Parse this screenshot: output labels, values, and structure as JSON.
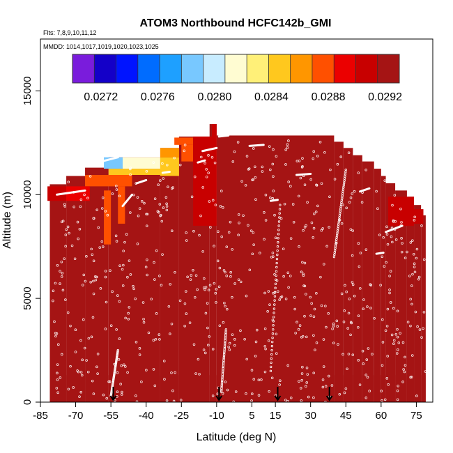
{
  "chart_data": {
    "type": "heatmap",
    "title": "ATOM3 Northbound HCFC142b_GMI",
    "subtitle_flights": "Flts: 7,8,9,10,11,12",
    "subtitle_dates": "MMDD: 1014,1017,1019,1020,1023,1025",
    "xlabel": "Latitude (deg N)",
    "ylabel": "Altitude (m)",
    "xlim": [
      -85,
      82
    ],
    "ylim": [
      0,
      17500
    ],
    "x_ticks": [
      -85,
      -70,
      -55,
      -40,
      -25,
      -10,
      5,
      15,
      30,
      45,
      60,
      75
    ],
    "y_ticks": [
      0,
      5000,
      10000,
      15000
    ],
    "grid": false,
    "legend": {
      "placement": "top",
      "ticks": [
        "0.0272",
        "0.0276",
        "0.0280",
        "0.0284",
        "0.0288",
        "0.0292"
      ],
      "range": [
        0.027,
        0.0293
      ],
      "colors": [
        "#7a1cdc",
        "#1400c8",
        "#0014ff",
        "#006cff",
        "#1ea0ff",
        "#78c8ff",
        "#c8ecff",
        "#fffcd2",
        "#fff078",
        "#ffc81e",
        "#ff9600",
        "#ff5000",
        "#eb0000",
        "#c80000",
        "#a51414"
      ]
    },
    "background_value": 0.02915,
    "anomalies": [
      {
        "lat": [
          -58,
          -55
        ],
        "alt": [
          7600,
          10200
        ],
        "value": 0.0287
      },
      {
        "lat": [
          -52,
          -49
        ],
        "alt": [
          8600,
          10400
        ],
        "value": 0.0288
      },
      {
        "lat": [
          -66,
          -46
        ],
        "alt": [
          10400,
          10950
        ],
        "value": 0.0287
      },
      {
        "lat": [
          -56,
          -32
        ],
        "alt": [
          10950,
          11250
        ],
        "value": 0.0285
      },
      {
        "lat": [
          -58,
          -50
        ],
        "alt": [
          11250,
          11800
        ],
        "value": 0.0278
      },
      {
        "lat": [
          -50,
          -34
        ],
        "alt": [
          11250,
          11800
        ],
        "value": 0.0281
      },
      {
        "lat": [
          -34,
          -26
        ],
        "alt": [
          10900,
          11800
        ],
        "value": 0.0285
      },
      {
        "lat": [
          -34,
          -26
        ],
        "alt": [
          11800,
          12250
        ],
        "value": 0.0286
      },
      {
        "lat": [
          -25,
          -20
        ],
        "alt": [
          11600,
          12400
        ],
        "value": 0.0287
      },
      {
        "lat": [
          -28,
          -20
        ],
        "alt": [
          12400,
          12750
        ],
        "value": 0.0288
      },
      {
        "lat": [
          -82,
          -74
        ],
        "alt": [
          9700,
          10400
        ],
        "value": 0.029
      },
      {
        "lat": [
          -74,
          -64
        ],
        "alt": [
          9700,
          10400
        ],
        "value": 0.0289
      },
      {
        "lat": [
          -20,
          -10
        ],
        "alt": [
          8500,
          12800
        ],
        "value": 0.0291
      },
      {
        "lat": [
          63,
          74
        ],
        "alt": [
          8500,
          9900
        ],
        "value": 0.0291
      },
      {
        "lat": [
          73,
          78
        ],
        "alt": [
          8600,
          9300
        ],
        "value": 0.029
      },
      {
        "lat": [
          -12,
          -10
        ],
        "alt": [
          12800,
          13400
        ],
        "value": 0.029
      }
    ],
    "tropopause_steps": [
      {
        "lat": [
          -81,
          -74
        ],
        "top": 10500
      },
      {
        "lat": [
          -74,
          -66
        ],
        "top": 10900
      },
      {
        "lat": [
          -66,
          -56
        ],
        "top": 11300
      },
      {
        "lat": [
          -56,
          -34
        ],
        "top": 11800
      },
      {
        "lat": [
          -34,
          -26
        ],
        "top": 12250
      },
      {
        "lat": [
          -26,
          -13
        ],
        "top": 12800
      },
      {
        "lat": [
          -13,
          -10
        ],
        "top": 13400
      },
      {
        "lat": [
          -10,
          40
        ],
        "top": 12850
      },
      {
        "lat": [
          40,
          44
        ],
        "top": 12550
      },
      {
        "lat": [
          44,
          48
        ],
        "top": 12250
      },
      {
        "lat": [
          48,
          52
        ],
        "top": 11900
      },
      {
        "lat": [
          52,
          57
        ],
        "top": 11600
      },
      {
        "lat": [
          57,
          60
        ],
        "top": 11250
      },
      {
        "lat": [
          60,
          62
        ],
        "top": 10900
      },
      {
        "lat": [
          62,
          66
        ],
        "top": 10550
      },
      {
        "lat": [
          66,
          71
        ],
        "top": 10200
      },
      {
        "lat": [
          71,
          74
        ],
        "top": 9900
      },
      {
        "lat": [
          74,
          77
        ],
        "top": 9500
      },
      {
        "lat": [
          77,
          79
        ],
        "top": 9000
      }
    ],
    "flight_tracks": [
      {
        "lat": [
          -78,
          -66
        ],
        "alt": [
          10000,
          10200
        ]
      },
      {
        "lat": [
          -44,
          -40
        ],
        "alt": [
          10550,
          10700
        ]
      },
      {
        "lat": [
          -33,
          -30
        ],
        "alt": [
          11050,
          11100
        ]
      },
      {
        "lat": [
          -18,
          -15
        ],
        "alt": [
          11550,
          11650
        ]
      },
      {
        "lat": [
          -16,
          -10
        ],
        "alt": [
          12100,
          12250
        ]
      },
      {
        "lat": [
          -9,
          -5
        ],
        "alt": [
          12800,
          12850
        ]
      },
      {
        "lat": [
          4,
          10
        ],
        "alt": [
          12350,
          12400
        ]
      },
      {
        "lat": [
          24,
          30
        ],
        "alt": [
          10950,
          11000
        ]
      },
      {
        "lat": [
          13,
          16
        ],
        "alt": [
          9700,
          9750
        ]
      },
      {
        "lat": [
          51,
          55
        ],
        "alt": [
          10150,
          10300
        ]
      },
      {
        "lat": [
          62,
          69
        ],
        "alt": [
          8200,
          8500
        ]
      },
      {
        "lat": [
          -59,
          -52
        ],
        "alt": [
          11600,
          11800
        ]
      },
      {
        "lat": [
          -50,
          -46
        ],
        "alt": [
          9450,
          10000
        ]
      },
      {
        "lat": [
          58,
          61
        ],
        "alt": [
          7150,
          7200
        ]
      }
    ],
    "vertical_profiles": [
      {
        "lat": [
          40,
          45
        ],
        "alt": [
          7000,
          11200
        ]
      },
      {
        "lat": [
          -8,
          -6
        ],
        "alt": [
          500,
          3500
        ]
      },
      {
        "lat": [
          13,
          17
        ],
        "alt": [
          1500,
          9500
        ]
      },
      {
        "lat": [
          -55,
          -52
        ],
        "alt": [
          300,
          2500
        ]
      }
    ],
    "arrows_lat": [
      -54,
      -9,
      16,
      38
    ]
  }
}
